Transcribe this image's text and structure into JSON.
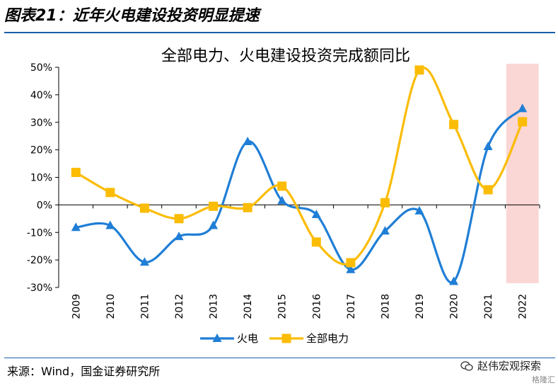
{
  "figure_title": "图表21：近年火电建设投资明显提速",
  "source": "来源：Wind，国金证券研究所",
  "watermark": "赵伟宏观探索",
  "watermark_logo": "格隆汇",
  "colors": {
    "thermal": "#1f7ed6",
    "total": "#fbbc05",
    "highlight": "#f9d2cf",
    "rule": "#1a5fa8"
  },
  "chart_data": {
    "type": "line",
    "title": "全部电力、火电建设投资完成额同比",
    "x": [
      "2009",
      "2010",
      "2011",
      "2012",
      "2013",
      "2014",
      "2015",
      "2016",
      "2017",
      "2018",
      "2019",
      "2020",
      "2021",
      "2022"
    ],
    "ylim": [
      -30,
      50
    ],
    "yticks": [
      50,
      40,
      30,
      20,
      10,
      0,
      -10,
      -20,
      -30
    ],
    "ytick_labels": [
      "50%",
      "40%",
      "30%",
      "20%",
      "10%",
      "0%",
      "-10%",
      "-20%",
      "-30%"
    ],
    "highlight_x": "2022",
    "legend_position": "bottom",
    "series": [
      {
        "name": "火电",
        "marker": "triangle",
        "values": [
          -8.2,
          -7.5,
          -20.8,
          -11.5,
          -7.5,
          23.0,
          1.5,
          -3.5,
          -23.5,
          -9.5,
          -2.2,
          -27.8,
          21.2,
          35.0
        ]
      },
      {
        "name": "全部电力",
        "marker": "square",
        "values": [
          11.8,
          4.5,
          -1.2,
          -5.0,
          -0.5,
          -1.0,
          6.8,
          -13.5,
          -21.0,
          0.8,
          49.0,
          29.2,
          5.5,
          30.2
        ]
      }
    ]
  }
}
